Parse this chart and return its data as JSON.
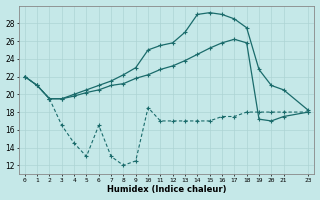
{
  "xlabel": "Humidex (Indice chaleur)",
  "background_color": "#c5e8e8",
  "grid_color": "#aed4d4",
  "line_color": "#1a6b6b",
  "x_ticks": [
    0,
    1,
    2,
    3,
    4,
    5,
    6,
    7,
    8,
    9,
    10,
    11,
    12,
    13,
    14,
    15,
    16,
    17,
    18,
    19,
    20,
    21,
    23
  ],
  "ylim": [
    11,
    30
  ],
  "xlim": [
    -0.5,
    23.5
  ],
  "yticks": [
    12,
    14,
    16,
    18,
    20,
    22,
    24,
    26,
    28
  ],
  "line1_x": [
    0,
    1,
    2,
    3,
    4,
    5,
    6,
    7,
    8,
    9,
    10,
    11,
    12,
    13,
    14,
    15,
    16,
    17,
    18,
    19,
    20,
    21,
    23
  ],
  "line1_y": [
    22,
    21,
    19.5,
    19.5,
    19.8,
    20.2,
    20.5,
    21,
    21.2,
    21.8,
    22.2,
    22.8,
    23.2,
    23.8,
    24.5,
    25.2,
    25.8,
    26.2,
    25.8,
    17.2,
    17.0,
    17.5,
    18.0
  ],
  "line2_x": [
    0,
    1,
    2,
    3,
    4,
    5,
    6,
    7,
    8,
    9,
    10,
    11,
    12,
    13,
    14,
    15,
    16,
    17,
    18,
    19,
    20,
    21,
    23
  ],
  "line2_y": [
    22,
    21,
    19.5,
    19.5,
    20,
    20.5,
    21,
    21.5,
    22.2,
    23,
    25,
    25.5,
    25.8,
    27,
    29,
    29.2,
    29.0,
    28.5,
    27.5,
    22.8,
    21,
    20.5,
    18.2
  ],
  "line3_x": [
    0,
    1,
    2,
    3,
    4,
    5,
    6,
    7,
    8,
    9,
    10,
    11,
    12,
    13,
    14,
    15,
    16,
    17,
    18,
    19,
    20,
    21,
    23
  ],
  "line3_y": [
    22,
    21,
    19.5,
    16.5,
    14.5,
    13.0,
    16.5,
    13.0,
    12.0,
    12.5,
    18.5,
    17.0,
    17.0,
    17.0,
    17.0,
    17.0,
    17.5,
    17.5,
    18.0,
    18.0,
    18.0,
    18.0,
    18.0
  ]
}
